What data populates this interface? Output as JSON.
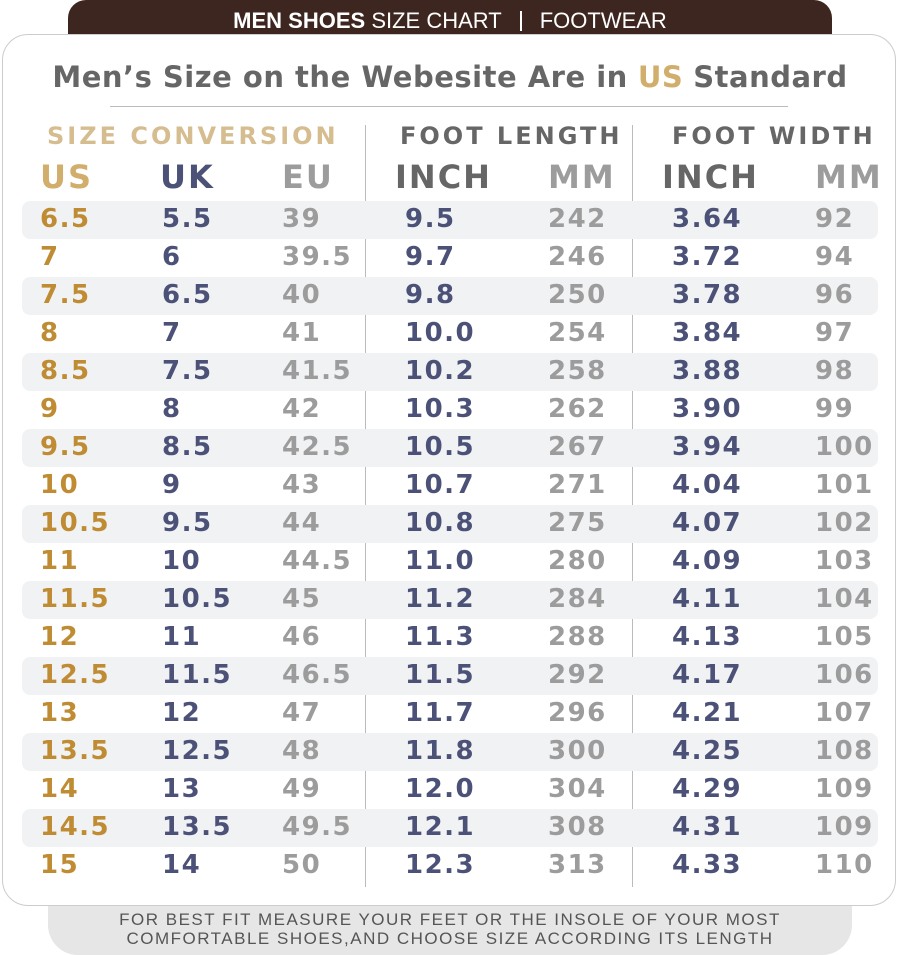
{
  "header": {
    "bold": "MEN SHOES",
    "title": "SIZE CHART",
    "category": "FOOTWEAR"
  },
  "subtitle": {
    "before": "Men’s Size on the Webesite Are in",
    "highlight": "US",
    "after": "Standard"
  },
  "table": {
    "groups": [
      "SIZE CONVERSION",
      "FOOT LENGTH",
      "FOOT WIDTH"
    ],
    "columns": [
      "US",
      "UK",
      "EU",
      "INCH",
      "MM",
      "INCH",
      "MM"
    ],
    "rows": [
      [
        "6.5",
        "5.5",
        "39",
        "9.5",
        "242",
        "3.64",
        "92"
      ],
      [
        "7",
        "6",
        "39.5",
        "9.7",
        "246",
        "3.72",
        "94"
      ],
      [
        "7.5",
        "6.5",
        "40",
        "9.8",
        "250",
        "3.78",
        "96"
      ],
      [
        "8",
        "7",
        "41",
        "10.0",
        "254",
        "3.84",
        "97"
      ],
      [
        "8.5",
        "7.5",
        "41.5",
        "10.2",
        "258",
        "3.88",
        "98"
      ],
      [
        "9",
        "8",
        "42",
        "10.3",
        "262",
        "3.90",
        "99"
      ],
      [
        "9.5",
        "8.5",
        "42.5",
        "10.5",
        "267",
        "3.94",
        "100"
      ],
      [
        "10",
        "9",
        "43",
        "10.7",
        "271",
        "4.04",
        "101"
      ],
      [
        "10.5",
        "9.5",
        "44",
        "10.8",
        "275",
        "4.07",
        "102"
      ],
      [
        "11",
        "10",
        "44.5",
        "11.0",
        "280",
        "4.09",
        "103"
      ],
      [
        "11.5",
        "10.5",
        "45",
        "11.2",
        "284",
        "4.11",
        "104"
      ],
      [
        "12",
        "11",
        "46",
        "11.3",
        "288",
        "4.13",
        "105"
      ],
      [
        "12.5",
        "11.5",
        "46.5",
        "11.5",
        "292",
        "4.17",
        "106"
      ],
      [
        "13",
        "12",
        "47",
        "11.7",
        "296",
        "4.21",
        "107"
      ],
      [
        "13.5",
        "12.5",
        "48",
        "11.8",
        "300",
        "4.25",
        "108"
      ],
      [
        "14",
        "13",
        "49",
        "12.0",
        "304",
        "4.29",
        "109"
      ],
      [
        "14.5",
        "13.5",
        "49.5",
        "12.1",
        "308",
        "4.31",
        "109"
      ],
      [
        "15",
        "14",
        "50",
        "12.3",
        "313",
        "4.33",
        "110"
      ]
    ]
  },
  "footer": {
    "lines": [
      "FOR BEST FIT MEASURE YOUR FEET OR THE INSOLE OF YOUR MOST",
      "COMFORTABLE SHOES,AND CHOOSE SIZE ACCORDING ITS LENGTH"
    ]
  }
}
